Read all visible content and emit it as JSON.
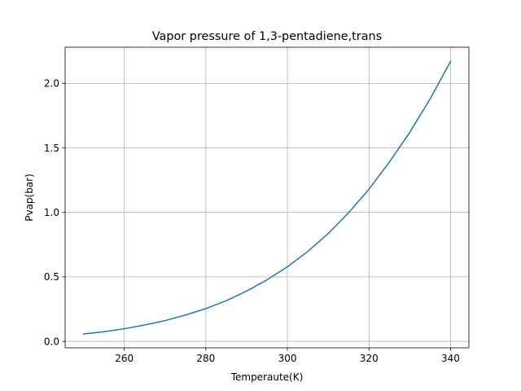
{
  "chart_data": {
    "type": "line",
    "title": "Vapor pressure of 1,3-pentadiene,trans",
    "xlabel": "Temperaute(K)",
    "ylabel": "Pvap(bar)",
    "xlim": [
      245.5,
      344.5
    ],
    "ylim": [
      -0.05,
      2.28
    ],
    "xticks": [
      260,
      280,
      300,
      320,
      340
    ],
    "yticks": [
      0.0,
      0.5,
      1.0,
      1.5,
      2.0
    ],
    "xtick_labels": [
      "260",
      "280",
      "300",
      "320",
      "340"
    ],
    "ytick_labels": [
      "0.0",
      "0.5",
      "1.0",
      "1.5",
      "2.0"
    ],
    "grid": true,
    "line_color": "#1f77b4",
    "series": [
      {
        "x": [
          250,
          255,
          260,
          265,
          270,
          275,
          280,
          285,
          290,
          295,
          300,
          305,
          310,
          315,
          320,
          325,
          330,
          335,
          340
        ],
        "values": [
          0.057,
          0.075,
          0.098,
          0.127,
          0.161,
          0.204,
          0.254,
          0.315,
          0.39,
          0.477,
          0.578,
          0.697,
          0.835,
          0.997,
          1.18,
          1.39,
          1.62,
          1.88,
          2.17
        ]
      }
    ]
  }
}
